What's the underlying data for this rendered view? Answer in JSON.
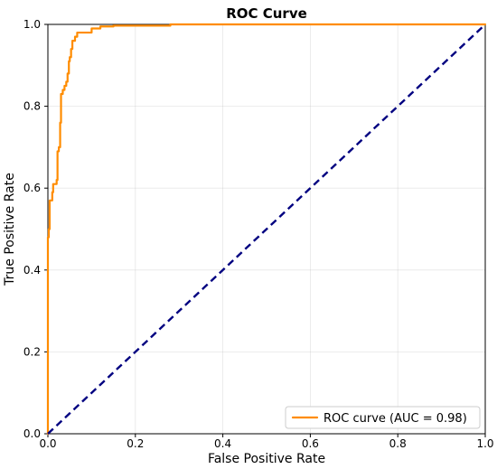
{
  "chart_data": {
    "type": "line",
    "title": "ROC Curve",
    "xlabel": "False Positive Rate",
    "ylabel": "True Positive Rate",
    "xlim": [
      0.0,
      1.0
    ],
    "ylim": [
      0.0,
      1.0
    ],
    "x_ticks": [
      "0.0",
      "0.2",
      "0.4",
      "0.6",
      "0.8",
      "1.0"
    ],
    "y_ticks": [
      "0.0",
      "0.2",
      "0.4",
      "0.6",
      "0.8",
      "1.0"
    ],
    "grid": true,
    "legend_position": "lower right",
    "series": [
      {
        "name": "ROC curve (AUC = 0.98)",
        "color": "#ff8c00",
        "style": "solid",
        "points": [
          [
            0.0,
            0.0
          ],
          [
            0.0,
            0.48
          ],
          [
            0.002,
            0.48
          ],
          [
            0.002,
            0.5
          ],
          [
            0.004,
            0.5
          ],
          [
            0.004,
            0.57
          ],
          [
            0.01,
            0.57
          ],
          [
            0.01,
            0.59
          ],
          [
            0.012,
            0.59
          ],
          [
            0.012,
            0.61
          ],
          [
            0.02,
            0.61
          ],
          [
            0.02,
            0.62
          ],
          [
            0.022,
            0.62
          ],
          [
            0.022,
            0.69
          ],
          [
            0.025,
            0.69
          ],
          [
            0.025,
            0.7
          ],
          [
            0.028,
            0.7
          ],
          [
            0.028,
            0.76
          ],
          [
            0.03,
            0.76
          ],
          [
            0.03,
            0.83
          ],
          [
            0.034,
            0.83
          ],
          [
            0.034,
            0.84
          ],
          [
            0.038,
            0.84
          ],
          [
            0.038,
            0.85
          ],
          [
            0.042,
            0.85
          ],
          [
            0.042,
            0.86
          ],
          [
            0.045,
            0.86
          ],
          [
            0.045,
            0.88
          ],
          [
            0.048,
            0.88
          ],
          [
            0.048,
            0.91
          ],
          [
            0.05,
            0.91
          ],
          [
            0.05,
            0.92
          ],
          [
            0.053,
            0.92
          ],
          [
            0.053,
            0.94
          ],
          [
            0.056,
            0.94
          ],
          [
            0.056,
            0.96
          ],
          [
            0.062,
            0.96
          ],
          [
            0.062,
            0.97
          ],
          [
            0.067,
            0.97
          ],
          [
            0.067,
            0.98
          ],
          [
            0.1,
            0.98
          ],
          [
            0.1,
            0.99
          ],
          [
            0.12,
            0.99
          ],
          [
            0.12,
            0.995
          ],
          [
            0.15,
            0.995
          ],
          [
            0.15,
            0.997
          ],
          [
            0.28,
            0.997
          ],
          [
            0.28,
            1.0
          ],
          [
            1.0,
            1.0
          ]
        ]
      },
      {
        "name": "",
        "color": "#000080",
        "style": "dashed",
        "points": [
          [
            0.0,
            0.0
          ],
          [
            1.0,
            1.0
          ]
        ]
      }
    ]
  }
}
